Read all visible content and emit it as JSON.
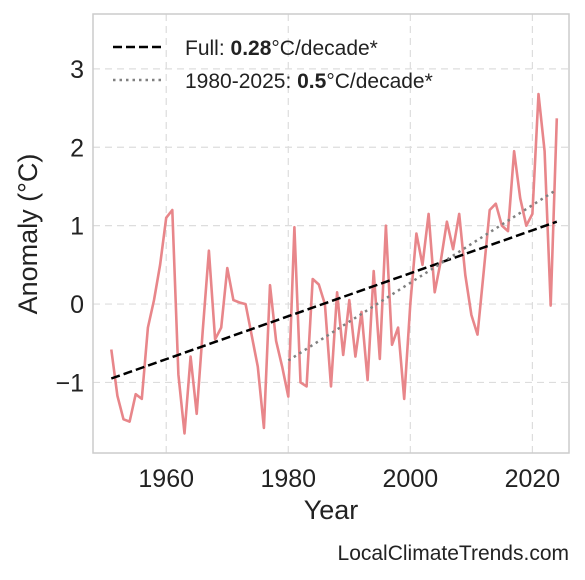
{
  "chart_data": {
    "type": "line",
    "title": "",
    "xlabel": "Year",
    "ylabel": "Anomaly (°C)",
    "xlim": [
      1948,
      2026
    ],
    "ylim": [
      -1.9,
      3.7
    ],
    "xticks": [
      1960,
      1980,
      2000,
      2020
    ],
    "yticks": [
      -1,
      0,
      1,
      2,
      3
    ],
    "ytick_labels": [
      "−1",
      "0",
      "1",
      "2",
      "3"
    ],
    "grid": true,
    "legend_position": "top-left",
    "colors": {
      "data_line": "#e8868a",
      "full_trend": "#000000",
      "recent_trend": "#808080",
      "grid": "#dddddd",
      "frame": "#cccccc"
    },
    "series": [
      {
        "style": "solid",
        "x": [
          1951,
          1952,
          1953,
          1954,
          1955,
          1956,
          1957,
          1958,
          1959,
          1960,
          1961,
          1962,
          1963,
          1964,
          1965,
          1966,
          1967,
          1968,
          1969,
          1970,
          1971,
          1972,
          1973,
          1974,
          1975,
          1976,
          1977,
          1978,
          1979,
          1980,
          1981,
          1982,
          1983,
          1984,
          1985,
          1986,
          1987,
          1988,
          1989,
          1990,
          1991,
          1992,
          1993,
          1994,
          1995,
          1996,
          1997,
          1998,
          1999,
          2000,
          2001,
          2002,
          2003,
          2004,
          2005,
          2006,
          2007,
          2008,
          2009,
          2010,
          2011,
          2012,
          2013,
          2014,
          2015,
          2016,
          2017,
          2018,
          2019,
          2020,
          2021,
          2022,
          2023,
          2024
        ],
        "y": [
          -0.58,
          -1.17,
          -1.47,
          -1.5,
          -1.15,
          -1.21,
          -0.3,
          0.05,
          0.5,
          1.1,
          1.2,
          -0.9,
          -1.65,
          -0.67,
          -1.4,
          -0.33,
          0.68,
          -0.45,
          -0.3,
          0.46,
          0.05,
          0.02,
          0.0,
          -0.4,
          -0.8,
          -1.58,
          0.24,
          -0.47,
          -0.8,
          -1.18,
          0.98,
          -1.0,
          -1.05,
          0.32,
          0.25,
          0.0,
          -1.05,
          0.15,
          -0.65,
          0.05,
          -0.67,
          -0.1,
          -0.97,
          0.42,
          -0.7,
          1.0,
          -0.52,
          -0.3,
          -1.21,
          0.0,
          0.9,
          0.5,
          1.15,
          0.15,
          0.55,
          1.05,
          0.7,
          1.15,
          0.37,
          -0.14,
          -0.39,
          0.4,
          1.2,
          1.28,
          1.0,
          0.93,
          1.95,
          1.35,
          1.0,
          1.15,
          2.68,
          1.95,
          -0.02,
          2.37
        ]
      },
      {
        "name": "Full",
        "rate": "0.28",
        "unit": "°C/decade*",
        "style": "dashed",
        "x": [
          1951,
          2024
        ],
        "y": [
          -0.95,
          1.05
        ]
      },
      {
        "name": "1980-2025",
        "rate": "0.5",
        "unit": "°C/decade*",
        "style": "dotted",
        "x": [
          1980,
          2024
        ],
        "y": [
          -0.72,
          1.46
        ]
      }
    ],
    "annotations": [
      "LocalClimateTrends.com"
    ]
  }
}
